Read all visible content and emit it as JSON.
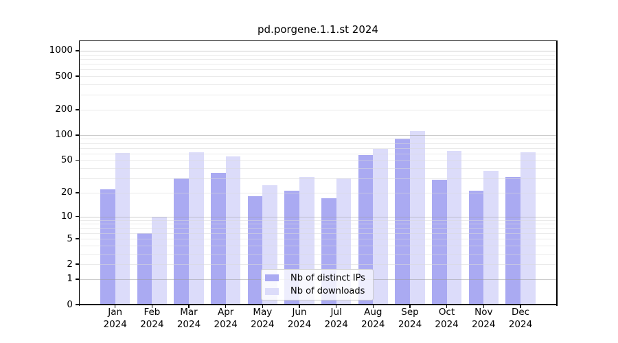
{
  "chart_data": {
    "type": "bar",
    "title": "pd.porgene.1.1.st 2024",
    "categories": [
      "Jan 2024",
      "Feb 2024",
      "Mar 2024",
      "Apr 2024",
      "May 2024",
      "Jun 2024",
      "Jul 2024",
      "Aug 2024",
      "Sep 2024",
      "Oct 2024",
      "Nov 2024",
      "Dec 2024"
    ],
    "series": [
      {
        "name": "Nb of distinct IPs",
        "color": "#aaaaf2",
        "values": [
          22,
          6,
          30,
          35,
          18,
          21,
          17,
          58,
          90,
          29,
          21,
          31
        ]
      },
      {
        "name": "Nb of downloads",
        "color": "#dcdcfa",
        "values": [
          61,
          10,
          62,
          55,
          25,
          31,
          30,
          68,
          112,
          64,
          37,
          62
        ]
      }
    ],
    "xlabel": "",
    "ylabel": "",
    "yscale": "log1p",
    "ylim": [
      0,
      1300
    ],
    "yticks": [
      0,
      1,
      2,
      5,
      10,
      20,
      50,
      100,
      200,
      500,
      1000
    ],
    "major_grid_values": [
      1,
      10,
      100,
      1000
    ],
    "grid": true,
    "legend_position": "bottom-center"
  }
}
